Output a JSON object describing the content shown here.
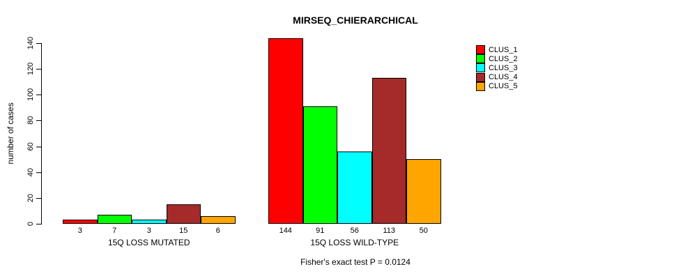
{
  "chart_data": {
    "type": "bar",
    "title": "MIRSEQ_CHIERARCHICAL",
    "ylabel": "number of cases",
    "ylim": [
      0,
      140
    ],
    "yticks": [
      0,
      20,
      40,
      60,
      80,
      100,
      120,
      140
    ],
    "grid": false,
    "legend_position": "top-right",
    "categories": [
      "15Q LOSS MUTATED",
      "15Q LOSS WILD-TYPE"
    ],
    "series": [
      {
        "name": "CLUS_1",
        "color": "#FF0000",
        "values": [
          3,
          144
        ]
      },
      {
        "name": "CLUS_2",
        "color": "#00FF00",
        "values": [
          7,
          91
        ]
      },
      {
        "name": "CLUS_3",
        "color": "#00FFFF",
        "values": [
          3,
          56
        ]
      },
      {
        "name": "CLUS_4",
        "color": "#A52A2A",
        "values": [
          15,
          113
        ]
      },
      {
        "name": "CLUS_5",
        "color": "#FFA500",
        "values": [
          6,
          50
        ]
      }
    ],
    "bar_value_labels": [
      [
        "3",
        "7",
        "3",
        "15",
        "6"
      ],
      [
        "144",
        "91",
        "56",
        "113",
        "50"
      ]
    ],
    "footnote": "Fisher's exact test P = 0.0124"
  }
}
